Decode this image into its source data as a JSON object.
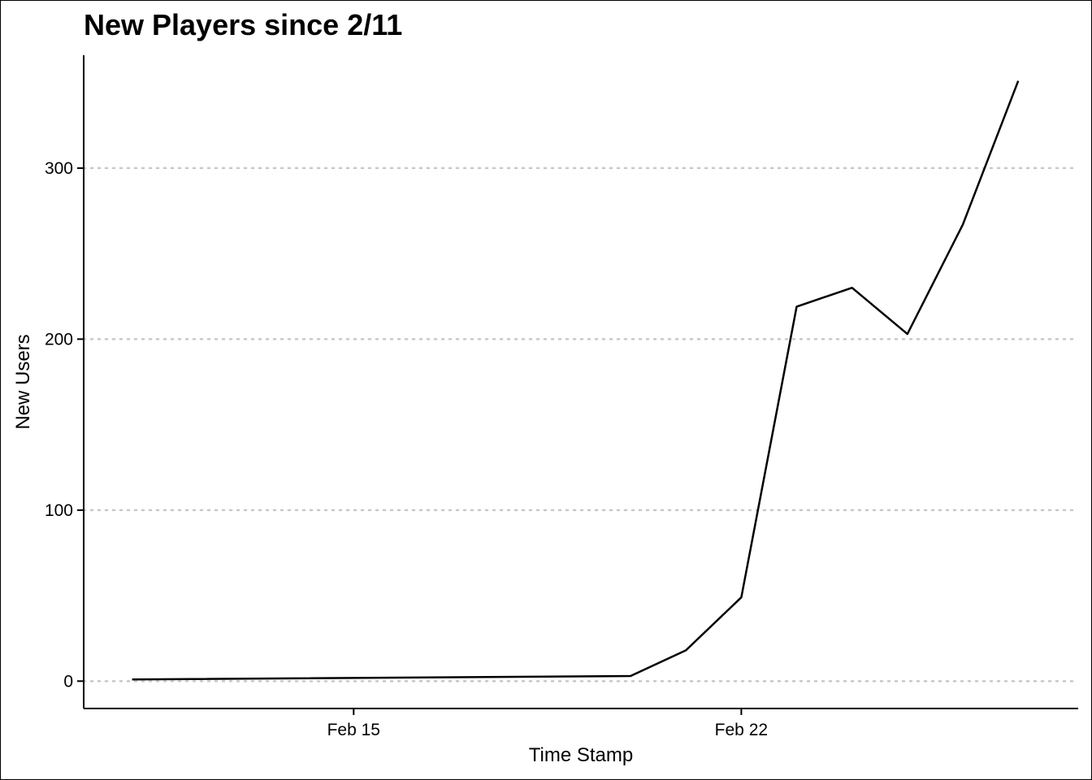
{
  "chart_data": {
    "type": "line",
    "title": "New Players since 2/11",
    "xlabel": "Time Stamp",
    "ylabel": "New Users",
    "x_axis_type": "date",
    "y_ticks": [
      0,
      100,
      200,
      300
    ],
    "y_tick_labels": [
      "0",
      "100",
      "200",
      "300"
    ],
    "x_ticks": [
      "2021-02-15",
      "2021-02-22"
    ],
    "x_tick_labels": [
      "Feb 15",
      "Feb 22"
    ],
    "xlim": [
      "2021-02-10T03:00",
      "2021-02-28T02:00"
    ],
    "ylim": [
      -16,
      366
    ],
    "grid": "horizontal dotted at y ticks",
    "line_color": "#000000",
    "grid_color": "#c8c8c8",
    "series": [
      {
        "x": [
          "2021-02-11",
          "2021-02-20",
          "2021-02-21",
          "2021-02-22",
          "2021-02-23",
          "2021-02-24",
          "2021-02-25",
          "2021-02-26",
          "2021-02-27"
        ],
        "y": [
          1,
          3,
          18,
          49,
          219,
          230,
          203,
          267,
          351
        ]
      }
    ]
  }
}
